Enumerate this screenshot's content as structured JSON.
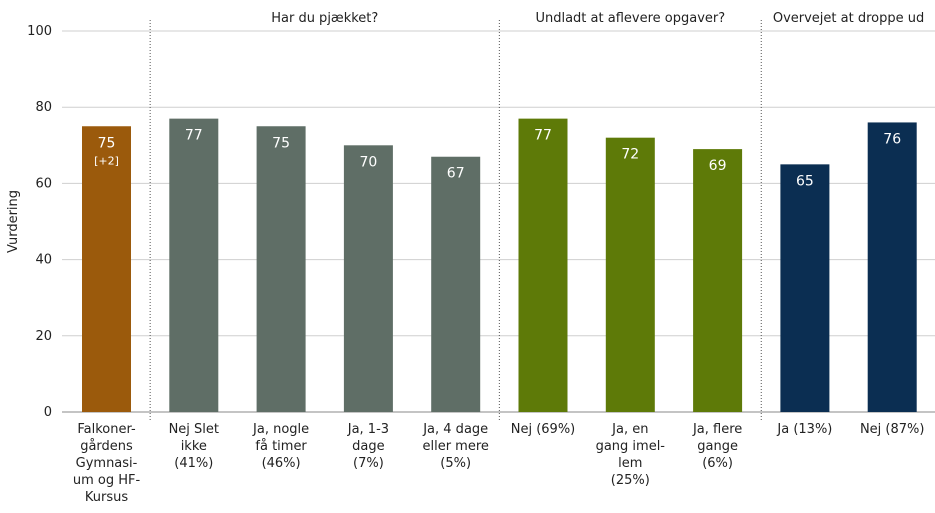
{
  "chart_data": {
    "type": "bar",
    "ylabel": "Vurdering",
    "ylim": [
      0,
      100
    ],
    "yticks": [
      "0",
      "20",
      "40",
      "60",
      "80",
      "100"
    ],
    "grid": true,
    "groups": [
      {
        "label": "",
        "bars": [
          0
        ]
      },
      {
        "label": "Har du pjækket?",
        "bars": [
          1,
          2,
          3,
          4
        ]
      },
      {
        "label": "Undladt at aflevere opgaver?",
        "bars": [
          5,
          6,
          7
        ]
      },
      {
        "label": "Overvejet at droppe ud",
        "bars": [
          8,
          9
        ]
      }
    ],
    "categories": [
      [
        "Falkoner-",
        "gårdens",
        "Gymnasi-",
        "um og HF-",
        "Kursus"
      ],
      [
        "Nej Slet",
        "ikke",
        "(41%)"
      ],
      [
        "Ja, nogle",
        "få timer",
        "(46%)"
      ],
      [
        "Ja, 1-3",
        "dage",
        "(7%)"
      ],
      [
        "Ja, 4 dage",
        "eller mere",
        "(5%)"
      ],
      [
        "Nej (69%)"
      ],
      [
        "Ja, en",
        "gang imel-",
        "lem",
        "(25%)"
      ],
      [
        "Ja, flere",
        "gange",
        "(6%)"
      ],
      [
        "Ja (13%)"
      ],
      [
        "Nej (87%)"
      ]
    ],
    "values": [
      75,
      77,
      75,
      70,
      67,
      77,
      72,
      69,
      65,
      76
    ],
    "value_labels": [
      "75",
      "77",
      "75",
      "70",
      "67",
      "77",
      "72",
      "69",
      "65",
      "76"
    ],
    "sub_labels": [
      "[+2]",
      "",
      "",
      "",
      "",
      "",
      "",
      "",
      "",
      ""
    ],
    "colors": [
      "#9b5a0c",
      "#5f6e66",
      "#5f6e66",
      "#5f6e66",
      "#5f6e66",
      "#5e7a08",
      "#5e7a08",
      "#5e7a08",
      "#0b2e52",
      "#0b2e52"
    ]
  }
}
